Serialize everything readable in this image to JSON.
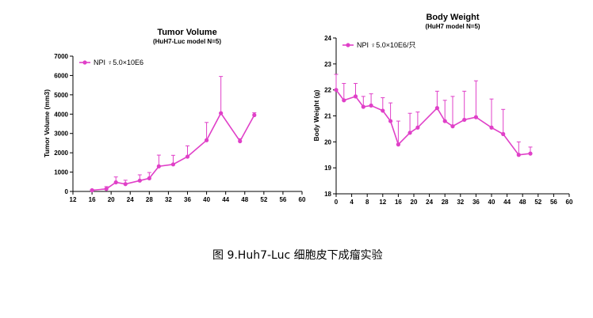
{
  "caption": "图 9.Huh7-Luc 细胞皮下成瘤实验",
  "colors": {
    "series": "#e040c8",
    "axis": "#000000"
  },
  "chart_data": [
    {
      "type": "line",
      "title": "Tumor Volume",
      "subtitle": "(HuH7-Luc model N=5)",
      "xlabel": "",
      "ylabel": "Tumor Volume (mm3)",
      "xlim": [
        12,
        60
      ],
      "ylim": [
        0,
        7000
      ],
      "xticks": [
        12,
        16,
        20,
        24,
        28,
        32,
        36,
        40,
        44,
        48,
        52,
        56,
        60
      ],
      "yticks": [
        0,
        1000,
        2000,
        3000,
        4000,
        5000,
        6000,
        7000
      ],
      "legend_position": "top-left",
      "series": [
        {
          "name": "NPI ♀5.0×10E6",
          "points": [
            {
              "x": 16,
              "y": 60,
              "err": 40
            },
            {
              "x": 19,
              "y": 130,
              "err": 120
            },
            {
              "x": 21,
              "y": 470,
              "err": 280
            },
            {
              "x": 23,
              "y": 380,
              "err": 200
            },
            {
              "x": 26,
              "y": 560,
              "err": 300
            },
            {
              "x": 28,
              "y": 680,
              "err": 300
            },
            {
              "x": 30,
              "y": 1300,
              "err": 580
            },
            {
              "x": 33,
              "y": 1400,
              "err": 470
            },
            {
              "x": 36,
              "y": 1800,
              "err": 560
            },
            {
              "x": 40,
              "y": 2650,
              "err": 920
            },
            {
              "x": 43,
              "y": 4050,
              "err": 1900
            },
            {
              "x": 47,
              "y": 2600,
              "err": 130
            },
            {
              "x": 50,
              "y": 3950,
              "err": 120
            }
          ]
        }
      ]
    },
    {
      "type": "line",
      "title": "Body  Weight",
      "subtitle": "(HuH7 model N=5)",
      "xlabel": "",
      "ylabel": "Body Weight (g)",
      "xlim": [
        0,
        60
      ],
      "ylim": [
        18,
        24
      ],
      "xticks": [
        0,
        4,
        8,
        12,
        16,
        20,
        24,
        28,
        32,
        36,
        40,
        44,
        48,
        52,
        56,
        60
      ],
      "yticks": [
        18,
        19,
        20,
        21,
        22,
        23,
        24
      ],
      "legend_position": "top-left",
      "series": [
        {
          "name": "NPI ♀5.0×10E6/只",
          "points": [
            {
              "x": 0,
              "y": 22.0,
              "err": 0.6
            },
            {
              "x": 2,
              "y": 21.6,
              "err": 0.65
            },
            {
              "x": 5,
              "y": 21.75,
              "err": 0.5
            },
            {
              "x": 7,
              "y": 21.35,
              "err": 0.4
            },
            {
              "x": 9,
              "y": 21.4,
              "err": 0.45
            },
            {
              "x": 12,
              "y": 21.2,
              "err": 0.5
            },
            {
              "x": 14,
              "y": 20.8,
              "err": 0.7
            },
            {
              "x": 16,
              "y": 19.9,
              "err": 0.9
            },
            {
              "x": 19,
              "y": 20.35,
              "err": 0.75
            },
            {
              "x": 21,
              "y": 20.55,
              "err": 0.6
            },
            {
              "x": 26,
              "y": 21.3,
              "err": 0.65
            },
            {
              "x": 28,
              "y": 20.8,
              "err": 0.8
            },
            {
              "x": 30,
              "y": 20.6,
              "err": 1.15
            },
            {
              "x": 33,
              "y": 20.85,
              "err": 1.1
            },
            {
              "x": 36,
              "y": 20.95,
              "err": 1.4
            },
            {
              "x": 40,
              "y": 20.55,
              "err": 1.1
            },
            {
              "x": 43,
              "y": 20.3,
              "err": 0.95
            },
            {
              "x": 47,
              "y": 19.5,
              "err": 0.5
            },
            {
              "x": 50,
              "y": 19.55,
              "err": 0.25
            }
          ]
        }
      ]
    }
  ]
}
